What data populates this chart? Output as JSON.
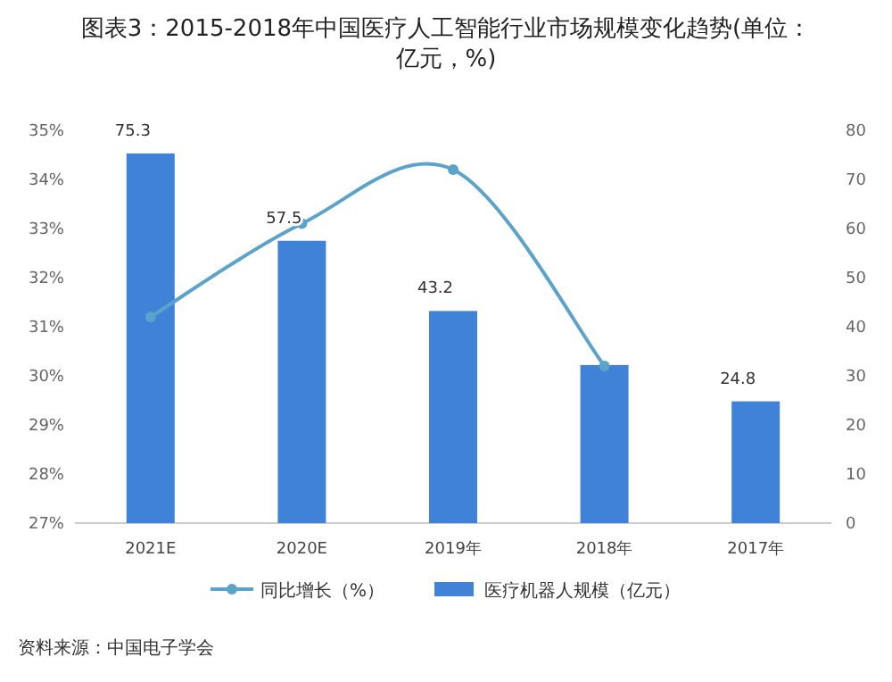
{
  "chart_data": {
    "type": "bar",
    "title": "图表3：2015-2018年中国医疗人工智能行业市场规模变化趋势(单位：亿元，%)",
    "categories": [
      "2021E",
      "2020E",
      "2019年",
      "2018年",
      "2017年"
    ],
    "series": [
      {
        "name": "医疗机器人规模（亿元）",
        "axis": "y2",
        "color": "#3f82d8",
        "values": [
          75.3,
          57.5,
          43.2,
          32.2,
          24.8
        ],
        "value_labels": [
          "75.3",
          "57.5",
          "43.2",
          null,
          "24.8"
        ]
      },
      {
        "name": "同比增长（%）",
        "type": "line",
        "axis": "y",
        "color": "#5ba3cc",
        "marker": "circle",
        "values": [
          31.2,
          33.1,
          34.2,
          30.2,
          null
        ]
      }
    ],
    "ylim": [
      27,
      35
    ],
    "yticks": [
      {
        "value": 27,
        "label": "27%"
      },
      {
        "value": 28,
        "label": "28%"
      },
      {
        "value": 29,
        "label": "29%"
      },
      {
        "value": 30,
        "label": "30%"
      },
      {
        "value": 31,
        "label": "31%"
      },
      {
        "value": 32,
        "label": "32%"
      },
      {
        "value": 33,
        "label": "33%"
      },
      {
        "value": 34,
        "label": "34%"
      },
      {
        "value": 35,
        "label": "35%"
      }
    ],
    "y2lim": [
      0,
      80
    ],
    "y2ticks": [
      0,
      10,
      20,
      30,
      40,
      50,
      60,
      70,
      80
    ],
    "legend": "bottom",
    "grid": false,
    "annotations": [
      "资料来源：中国电子学会"
    ]
  }
}
